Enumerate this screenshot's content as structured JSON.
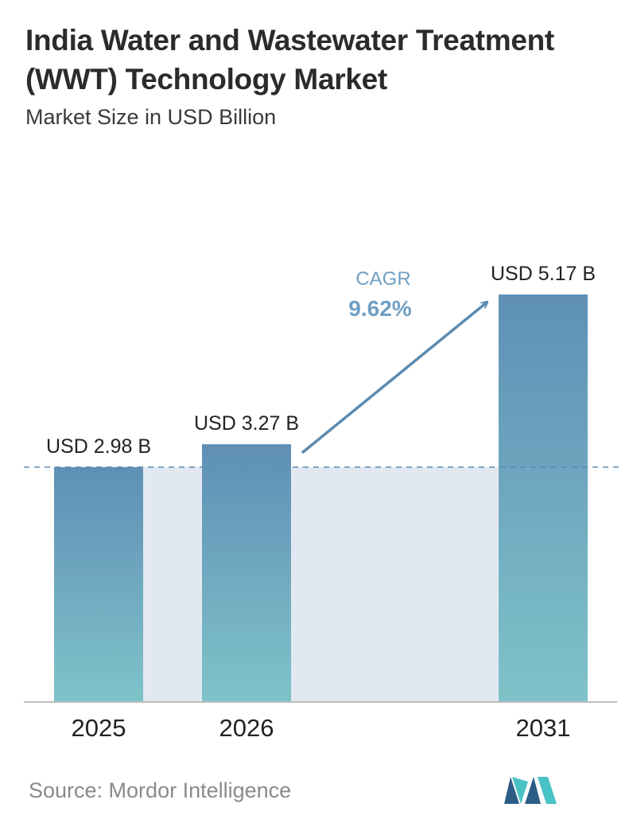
{
  "header": {
    "title": "India Water and Wastewater Treatment (WWT) Technology Market",
    "subtitle": "Market Size in USD Billion"
  },
  "cagr": {
    "label": "CAGR",
    "value": "9.62%"
  },
  "source": "Source:  Mordor Intelligence",
  "logo": {
    "icon": "mordor-intelligence-logo"
  },
  "colors": {
    "bar_top": "#5f8fb6",
    "bar_bottom": "#7fc3c9",
    "band": "#e2e8f1",
    "arrow": "#5b8bb1",
    "cagr_text": "#6f9fc3",
    "axis": "#bdbdbd",
    "dashed": "#5d8bb1",
    "text": "#222222"
  },
  "chart_data": {
    "type": "bar",
    "title": "India Water and Wastewater Treatment (WWT) Technology Market",
    "subtitle": "Market Size in USD Billion",
    "categories": [
      "2025",
      "2026",
      "2031"
    ],
    "values": [
      2.98,
      3.27,
      5.17
    ],
    "value_labels": [
      "USD 2.98 B",
      "USD 3.27 B",
      "USD 5.17 B"
    ],
    "ylim": [
      0,
      5.17
    ],
    "grid": false,
    "reference_line": 2.98
  }
}
